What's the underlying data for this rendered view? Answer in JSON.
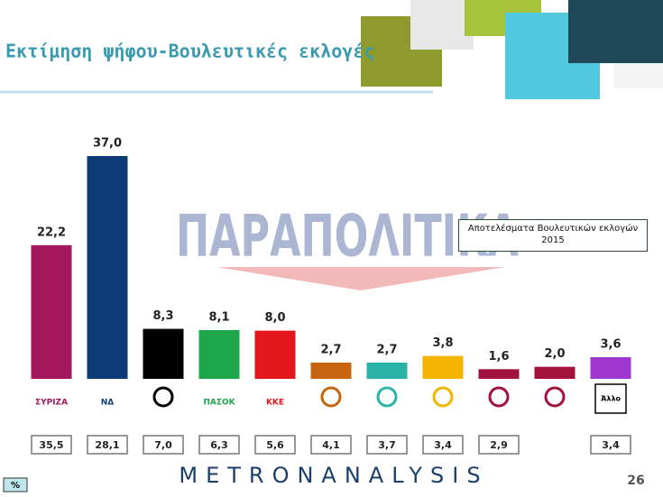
{
  "chart_data": {
    "type": "bar",
    "title": "Εκτίμηση ψήφου-Βουλευτικές εκλογές",
    "watermark": "ΠΑΡΑΠΟΛΙΤΙΚΑ",
    "categories": [
      "ΣΥΡΙΖΑ",
      "ΝΔ",
      null,
      "ΠΑΣΟΚ",
      "ΚΚΕ",
      null,
      null,
      null,
      null,
      null,
      "Άλλο"
    ],
    "values": [
      22.2,
      37.0,
      8.3,
      8.1,
      8.0,
      2.7,
      2.7,
      3.8,
      1.6,
      2.0,
      3.6
    ],
    "value_labels": [
      "22,2",
      "37,0",
      "8,3",
      "8,1",
      "8,0",
      "2,7",
      "2,7",
      "3,8",
      "1,6",
      "2,0",
      "3,6"
    ],
    "colors": [
      "#a3185c",
      "#0d3b78",
      "#000000",
      "#1ea64a",
      "#e3161c",
      "#c7640f",
      "#2ab3a6",
      "#f5b400",
      "#a2123f",
      "#a3123d",
      "#9f37cf"
    ],
    "previous_results": {
      "title": "Αποτελέσματα Βουλευτικών εκλογών 2015",
      "values": [
        35.5,
        28.1,
        7.0,
        6.3,
        5.6,
        4.1,
        3.7,
        3.4,
        2.9,
        null,
        3.4
      ],
      "value_labels": [
        "35,5",
        "28,1",
        "7,0",
        "6,3",
        "5,6",
        "4,1",
        "3,7",
        "3,4",
        "2,9",
        null,
        "3,4"
      ]
    },
    "unit": "%",
    "footer": "METRONANALYSIS",
    "page_number": "26"
  }
}
